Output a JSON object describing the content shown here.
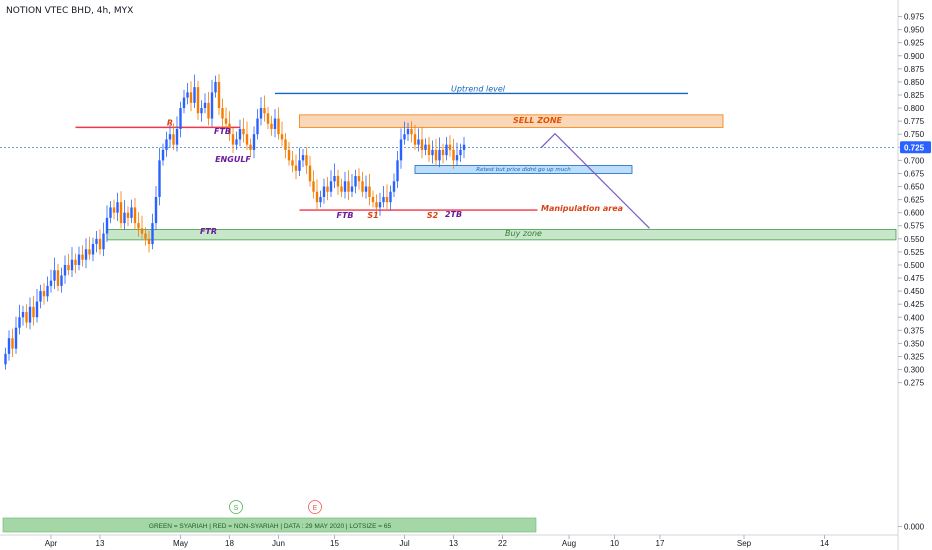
{
  "header": {
    "symbol_title": "NOTION VTEC BHD, 4h, MYX"
  },
  "chart_data": {
    "type": "candlestick",
    "title": "NOTION VTEC BHD, 4h, MYX",
    "y_axis": {
      "ylim": [
        -0.0125,
        0.9875
      ],
      "position": "right",
      "ticks": [
        "0.975",
        "0.950",
        "0.925",
        "0.900",
        "0.875",
        "0.850",
        "0.825",
        "0.800",
        "0.775",
        "0.750",
        "0.725",
        "0.700",
        "0.675",
        "0.650",
        "0.625",
        "0.600",
        "0.575",
        "0.550",
        "0.525",
        "0.500",
        "0.475",
        "0.450",
        "0.425",
        "0.400",
        "0.375",
        "0.350",
        "0.325",
        "0.300",
        "0.275",
        "0.000"
      ],
      "last_price_label": "0.725"
    },
    "x_axis": {
      "ticks": [
        {
          "label": "Apr",
          "bar": 13
        },
        {
          "label": "13",
          "bar": 27
        },
        {
          "label": "May",
          "bar": 50
        },
        {
          "label": "18",
          "bar": 64
        },
        {
          "label": "Jun",
          "bar": 78
        },
        {
          "label": "15",
          "bar": 94
        },
        {
          "label": "Jul",
          "bar": 114
        },
        {
          "label": "13",
          "bar": 128
        },
        {
          "label": "22",
          "bar": 142
        },
        {
          "label": "Aug",
          "bar": 161
        },
        {
          "label": "10",
          "bar": 174
        },
        {
          "label": "17",
          "bar": 187
        },
        {
          "label": "Sep",
          "bar": 211
        },
        {
          "label": "14",
          "bar": 234
        }
      ]
    },
    "candles_closes": [
      0.33,
      0.36,
      0.34,
      0.38,
      0.4,
      0.41,
      0.39,
      0.42,
      0.4,
      0.43,
      0.45,
      0.44,
      0.46,
      0.47,
      0.49,
      0.46,
      0.48,
      0.5,
      0.49,
      0.51,
      0.5,
      0.52,
      0.51,
      0.53,
      0.52,
      0.54,
      0.55,
      0.53,
      0.56,
      0.59,
      0.61,
      0.6,
      0.62,
      0.58,
      0.6,
      0.59,
      0.61,
      0.58,
      0.57,
      0.56,
      0.55,
      0.54,
      0.58,
      0.63,
      0.7,
      0.72,
      0.74,
      0.75,
      0.73,
      0.76,
      0.8,
      0.82,
      0.83,
      0.81,
      0.84,
      0.79,
      0.8,
      0.81,
      0.78,
      0.83,
      0.85,
      0.8,
      0.78,
      0.77,
      0.75,
      0.73,
      0.74,
      0.76,
      0.75,
      0.73,
      0.72,
      0.75,
      0.78,
      0.8,
      0.79,
      0.77,
      0.76,
      0.78,
      0.75,
      0.74,
      0.72,
      0.7,
      0.69,
      0.68,
      0.7,
      0.71,
      0.69,
      0.66,
      0.64,
      0.62,
      0.63,
      0.65,
      0.64,
      0.66,
      0.67,
      0.65,
      0.64,
      0.66,
      0.64,
      0.65,
      0.67,
      0.66,
      0.64,
      0.65,
      0.63,
      0.62,
      0.61,
      0.62,
      0.63,
      0.62,
      0.64,
      0.66,
      0.7,
      0.74,
      0.75,
      0.76,
      0.75,
      0.73,
      0.74,
      0.72,
      0.73,
      0.71,
      0.72,
      0.7,
      0.72,
      0.71,
      0.73,
      0.72,
      0.7,
      0.71,
      0.72,
      0.73
    ],
    "candles_opens": [
      0.31,
      0.33,
      0.36,
      0.34,
      0.38,
      0.4,
      0.41,
      0.39,
      0.42,
      0.4,
      0.43,
      0.45,
      0.44,
      0.46,
      0.47,
      0.49,
      0.46,
      0.48,
      0.5,
      0.49,
      0.51,
      0.5,
      0.52,
      0.51,
      0.53,
      0.52,
      0.54,
      0.55,
      0.53,
      0.56,
      0.59,
      0.61,
      0.6,
      0.62,
      0.58,
      0.6,
      0.59,
      0.61,
      0.58,
      0.57,
      0.56,
      0.55,
      0.54,
      0.58,
      0.63,
      0.7,
      0.72,
      0.74,
      0.75,
      0.73,
      0.76,
      0.8,
      0.82,
      0.83,
      0.81,
      0.84,
      0.79,
      0.8,
      0.81,
      0.78,
      0.83,
      0.85,
      0.8,
      0.78,
      0.77,
      0.75,
      0.73,
      0.74,
      0.76,
      0.75,
      0.73,
      0.72,
      0.75,
      0.78,
      0.8,
      0.79,
      0.77,
      0.76,
      0.78,
      0.75,
      0.74,
      0.72,
      0.7,
      0.69,
      0.68,
      0.7,
      0.71,
      0.69,
      0.66,
      0.64,
      0.62,
      0.63,
      0.65,
      0.64,
      0.66,
      0.67,
      0.65,
      0.64,
      0.66,
      0.64,
      0.65,
      0.67,
      0.66,
      0.64,
      0.65,
      0.63,
      0.62,
      0.61,
      0.62,
      0.63,
      0.62,
      0.64,
      0.66,
      0.7,
      0.74,
      0.75,
      0.76,
      0.75,
      0.73,
      0.74,
      0.72,
      0.73,
      0.71,
      0.72,
      0.7,
      0.72,
      0.71,
      0.73,
      0.72,
      0.7,
      0.71,
      0.72
    ],
    "colors": {
      "up": "#2962ff",
      "down": "#f57c00",
      "sell_zone_fill": "#f9d7b8",
      "sell_zone_border": "#f57c00",
      "buy_zone_fill": "#c8e6c9",
      "buy_zone_border": "#43a047",
      "retest_fill": "#bbdefb",
      "retest_border": "#1565c0",
      "red_line": "#f23645",
      "blue_line": "#1565c0",
      "purple_line": "#7e57c2",
      "purple_text": "#6a1b9a",
      "green_bar": "#a5d6a7"
    },
    "annotations": {
      "uptrend_label": "Uptrend level",
      "sell_zone_label": "SELL ZONE",
      "buy_zone_label": "Buy zone",
      "retest_label": "Retest but price didnt go up much",
      "manipulation_label": "Manipulation area",
      "r_label": "R",
      "ftb_label_1": "FTB",
      "engulf_label": "ENGULF",
      "ftr_label": "FTR",
      "ftb_label_2": "FTB",
      "s1_label": "S1",
      "s2_label": "S2",
      "twotb_label": "2TB",
      "footer_text": "GREEN = SYARIAH   |   RED = NON-SYARIAH   |  DATA : 29 MAY 2020   |  LOTSIZE = 65",
      "marker_s": "S",
      "marker_e": "E"
    }
  }
}
